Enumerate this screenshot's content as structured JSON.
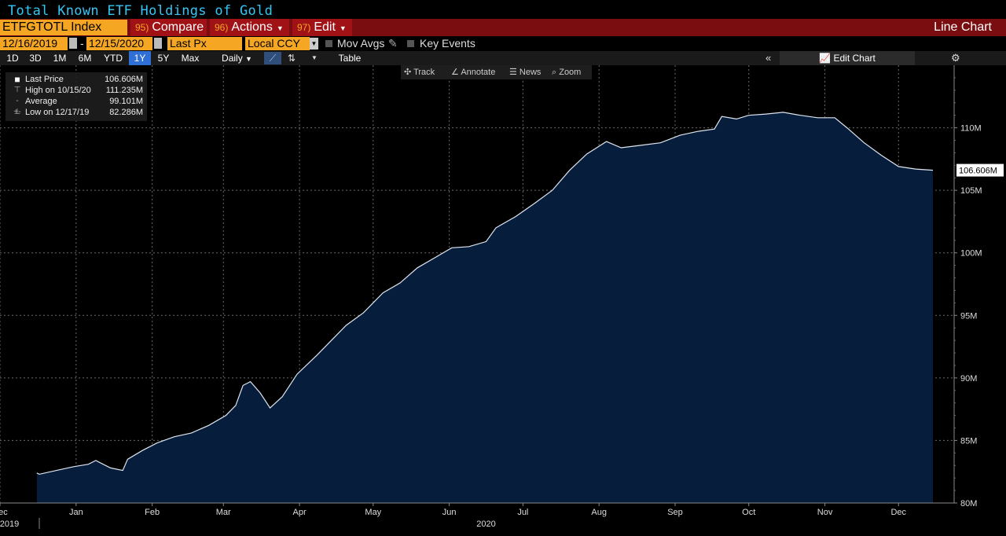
{
  "title": "Total Known ETF Holdings of Gold",
  "command_bar": {
    "ticker": "ETFGTOTL Index",
    "compare": {
      "num": "95)",
      "label": "Compare"
    },
    "actions": {
      "num": "96)",
      "label": "Actions"
    },
    "edit": {
      "num": "97)",
      "label": "Edit"
    },
    "chart_type": "Line Chart"
  },
  "options_bar": {
    "start_date": "12/16/2019",
    "end_date": "12/15/2020",
    "field": "Last Px",
    "currency": "Local CCY",
    "mov_avgs": "Mov Avgs",
    "key_events": "Key Events"
  },
  "range_bar": {
    "ranges": [
      "1D",
      "3D",
      "1M",
      "6M",
      "YTD",
      "1Y",
      "5Y",
      "Max"
    ],
    "active_range": "1Y",
    "frequency": "Daily",
    "table": "Table",
    "edit_chart": "Edit Chart"
  },
  "chart_tools": {
    "track": "Track",
    "annotate": "Annotate",
    "news": "News",
    "zoom": "Zoom"
  },
  "legend": {
    "last_price_label": "Last Price",
    "last_price_value": "106.606M",
    "high_label": "High on 10/15/20",
    "high_value": "111.235M",
    "average_label": "Average",
    "average_value": "99.101M",
    "low_label": "Low on 12/17/19",
    "low_value": "82.286M"
  },
  "colors": {
    "accent_orange": "#f5a623",
    "title_cyan": "#34c6f4",
    "command_red": "#a01216",
    "area_fill": "#061d3c",
    "line": "#dfe6f0"
  },
  "chart_data": {
    "type": "area",
    "title": "Total Known ETF Holdings of Gold",
    "xlabel": "",
    "ylabel": "",
    "ylim": [
      80,
      115
    ],
    "y_ticks": [
      80,
      85,
      90,
      95,
      100,
      105,
      110
    ],
    "y_tick_labels": [
      "80M",
      "85M",
      "90M",
      "95M",
      "100M",
      "105M",
      "110M"
    ],
    "x_labels": [
      "Dec",
      "Jan",
      "Feb",
      "Mar",
      "Apr",
      "May",
      "Jun",
      "Jul",
      "Aug",
      "Sep",
      "Oct",
      "Nov",
      "Dec"
    ],
    "x_label_dates": [
      "2019-12-01",
      "2020-01-01",
      "2020-02-01",
      "2020-03-01",
      "2020-04-01",
      "2020-05-01",
      "2020-06-01",
      "2020-07-01",
      "2020-08-01",
      "2020-09-01",
      "2020-10-01",
      "2020-11-01",
      "2020-12-01"
    ],
    "year_labels": [
      {
        "text": "2019",
        "date": "2019-12-01"
      },
      {
        "text": "2020",
        "date": "2020-06-16"
      }
    ],
    "last_value_label": "106.606M",
    "grid": true,
    "x_range": [
      "2019-12-01",
      "2020-12-15"
    ],
    "series": [
      {
        "points": [
          [
            "2019-12-16",
            82.4
          ],
          [
            "2019-12-17",
            82.3
          ],
          [
            "2019-12-24",
            82.6
          ],
          [
            "2019-12-31",
            82.9
          ],
          [
            "2020-01-06",
            83.1
          ],
          [
            "2020-01-09",
            83.4
          ],
          [
            "2020-01-15",
            82.8
          ],
          [
            "2020-01-20",
            82.6
          ],
          [
            "2020-01-22",
            83.5
          ],
          [
            "2020-01-28",
            84.2
          ],
          [
            "2020-02-03",
            84.8
          ],
          [
            "2020-02-10",
            85.3
          ],
          [
            "2020-02-17",
            85.6
          ],
          [
            "2020-02-24",
            86.2
          ],
          [
            "2020-03-02",
            87.0
          ],
          [
            "2020-03-06",
            87.8
          ],
          [
            "2020-03-09",
            89.4
          ],
          [
            "2020-03-12",
            89.7
          ],
          [
            "2020-03-16",
            88.8
          ],
          [
            "2020-03-20",
            87.6
          ],
          [
            "2020-03-25",
            88.5
          ],
          [
            "2020-03-31",
            90.3
          ],
          [
            "2020-04-08",
            91.8
          ],
          [
            "2020-04-14",
            93.0
          ],
          [
            "2020-04-20",
            94.2
          ],
          [
            "2020-04-27",
            95.2
          ],
          [
            "2020-05-05",
            96.8
          ],
          [
            "2020-05-12",
            97.6
          ],
          [
            "2020-05-19",
            98.8
          ],
          [
            "2020-05-26",
            99.6
          ],
          [
            "2020-06-02",
            100.4
          ],
          [
            "2020-06-09",
            100.5
          ],
          [
            "2020-06-16",
            100.9
          ],
          [
            "2020-06-20",
            102.0
          ],
          [
            "2020-06-28",
            102.9
          ],
          [
            "2020-07-06",
            104.0
          ],
          [
            "2020-07-13",
            105.0
          ],
          [
            "2020-07-20",
            106.6
          ],
          [
            "2020-07-27",
            107.9
          ],
          [
            "2020-08-04",
            108.9
          ],
          [
            "2020-08-10",
            108.4
          ],
          [
            "2020-08-18",
            108.6
          ],
          [
            "2020-08-26",
            108.8
          ],
          [
            "2020-09-03",
            109.4
          ],
          [
            "2020-09-10",
            109.7
          ],
          [
            "2020-09-17",
            109.9
          ],
          [
            "2020-09-20",
            110.9
          ],
          [
            "2020-09-26",
            110.7
          ],
          [
            "2020-10-01",
            111.0
          ],
          [
            "2020-10-08",
            111.1
          ],
          [
            "2020-10-15",
            111.235
          ],
          [
            "2020-10-22",
            111.0
          ],
          [
            "2020-10-29",
            110.8
          ],
          [
            "2020-11-05",
            110.8
          ],
          [
            "2020-11-10",
            110.0
          ],
          [
            "2020-11-17",
            108.8
          ],
          [
            "2020-11-24",
            107.8
          ],
          [
            "2020-12-01",
            106.9
          ],
          [
            "2020-12-08",
            106.7
          ],
          [
            "2020-12-15",
            106.606
          ]
        ]
      }
    ]
  }
}
